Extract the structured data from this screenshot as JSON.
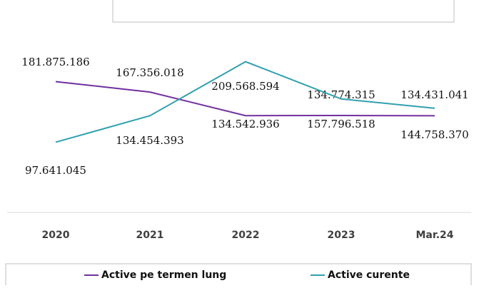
{
  "chart_data": {
    "type": "line",
    "categories": [
      "2020",
      "2021",
      "2022",
      "2023",
      "Mar.24"
    ],
    "series": [
      {
        "name": "Active pe termen lung",
        "color": "#7030a0",
        "values": [
          181875186,
          167356018,
          134542936,
          134774315,
          134431041
        ],
        "value_labels": [
          "181.875.186",
          "167.356.018",
          "134.542.936",
          "134.774.315",
          "134.431.041"
        ]
      },
      {
        "name": "Active curente",
        "color": "#31a0b0",
        "values": [
          97641045,
          134454393,
          209568594,
          157796518,
          144758370
        ],
        "value_labels": [
          "97.641.045",
          "134.454.393",
          "209.568.594",
          "157.796.518",
          "144.758.370"
        ]
      }
    ],
    "ylim": [
      0,
      220000000
    ],
    "legend": "bottom"
  }
}
